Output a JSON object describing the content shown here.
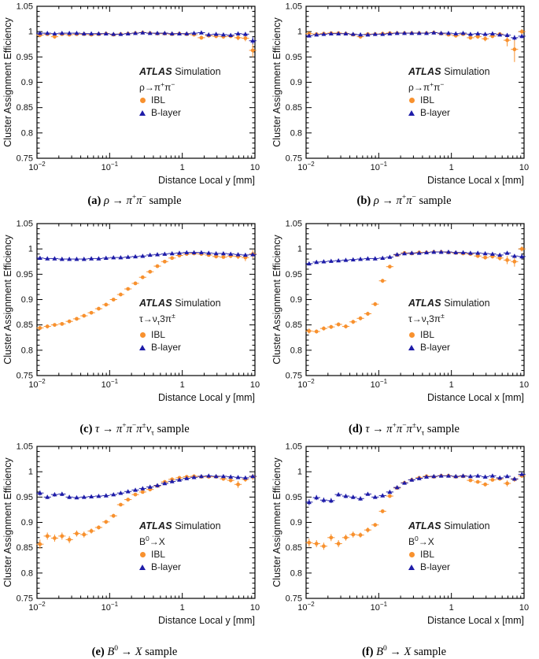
{
  "colors": {
    "ibl": "#F8912E",
    "blayer": "#1E1CA8",
    "axis": "#000000",
    "text": "#1a1a1a"
  },
  "legend": {
    "atlas": "ATLAS",
    "simulation": " Simulation",
    "ibl_label": "IBL",
    "blayer_label": "B-layer"
  },
  "axes": {
    "ylabel": "Cluster Assignment Efficiency",
    "ylim": [
      0.75,
      1.05
    ],
    "xlim": [
      0.01,
      10
    ],
    "xscale": "log",
    "y_ticks": [
      {
        "v": 0.75,
        "label": "0.75"
      },
      {
        "v": 0.8,
        "label": "0.8"
      },
      {
        "v": 0.85,
        "label": "0.85"
      },
      {
        "v": 0.9,
        "label": "0.9"
      },
      {
        "v": 0.95,
        "label": "0.95"
      },
      {
        "v": 1.0,
        "label": "1"
      },
      {
        "v": 1.05,
        "label": "1.05"
      }
    ],
    "y_minor_step": 0.01,
    "x_ticks": [
      {
        "v": 0.01,
        "label": "10",
        "exp": "−2"
      },
      {
        "v": 0.1,
        "label": "10",
        "exp": "−1"
      },
      {
        "v": 1,
        "label": "1"
      },
      {
        "v": 10,
        "label": "10"
      }
    ]
  },
  "x_values": [
    0.011,
    0.0139,
    0.0175,
    0.0221,
    0.0279,
    0.0352,
    0.0444,
    0.056,
    0.0707,
    0.0892,
    0.113,
    0.142,
    0.179,
    0.226,
    0.285,
    0.36,
    0.454,
    0.573,
    0.723,
    0.912,
    1.15,
    1.45,
    1.83,
    2.31,
    2.92,
    3.68,
    4.64,
    5.86,
    7.39,
    9.33
  ],
  "chart_data": [
    {
      "type": "scatter",
      "panel": "a",
      "xlabel": "Distance Local y [mm]",
      "ylabel": "Cluster Assignment Efficiency",
      "process_html": "ρ→π<sup>+</sup>π<sup>−</sup>",
      "caption_html": "<b>(a)</b> <i>ρ</i> → <i>π</i><sup>+</sup><i>π</i><sup>−</sup> sample",
      "series": [
        {
          "name": "IBL",
          "marker": "circle",
          "y": [
            0.993,
            0.995,
            0.99,
            0.995,
            0.994,
            0.995,
            0.995,
            0.994,
            0.995,
            0.996,
            0.994,
            0.995,
            0.996,
            0.997,
            0.998,
            0.997,
            0.996,
            0.996,
            0.995,
            0.996,
            0.995,
            0.994,
            0.988,
            0.992,
            0.991,
            0.99,
            0.991,
            0.988,
            0.987,
            0.963
          ],
          "err": [
            0.004,
            0.003,
            0.004,
            0.003,
            0.003,
            0.003,
            0.003,
            0.003,
            0.002,
            0.002,
            0.002,
            0.002,
            0.002,
            0.002,
            0.002,
            0.002,
            0.002,
            0.002,
            0.002,
            0.002,
            0.002,
            0.003,
            0.004,
            0.003,
            0.004,
            0.004,
            0.004,
            0.005,
            0.006,
            0.013
          ]
        },
        {
          "name": "B-layer",
          "marker": "triangle",
          "y": [
            0.997,
            0.997,
            0.996,
            0.997,
            0.997,
            0.997,
            0.996,
            0.996,
            0.996,
            0.996,
            0.995,
            0.995,
            0.996,
            0.997,
            0.998,
            0.997,
            0.997,
            0.997,
            0.996,
            0.996,
            0.996,
            0.997,
            0.998,
            0.994,
            0.995,
            0.994,
            0.993,
            0.996,
            0.995,
            0.982
          ],
          "err": [
            0.002,
            0.002,
            0.002,
            0.002,
            0.002,
            0.002,
            0.002,
            0.002,
            0.001,
            0.001,
            0.001,
            0.001,
            0.001,
            0.001,
            0.001,
            0.001,
            0.001,
            0.001,
            0.001,
            0.001,
            0.002,
            0.002,
            0.002,
            0.002,
            0.002,
            0.003,
            0.003,
            0.003,
            0.004,
            0.007
          ]
        }
      ]
    },
    {
      "type": "scatter",
      "panel": "b",
      "xlabel": "Distance Local x [mm]",
      "ylabel": "Cluster Assignment Efficiency",
      "process_html": "ρ→π<sup>+</sup>π<sup>−</sup>",
      "caption_html": "<b>(b)</b> <i>ρ</i> → <i>π</i><sup>+</sup><i>π</i><sup>−</sup> sample",
      "series": [
        {
          "name": "IBL",
          "marker": "circle",
          "y": [
            0.996,
            0.995,
            0.996,
            0.997,
            0.997,
            0.996,
            0.994,
            0.99,
            0.995,
            0.995,
            0.996,
            0.997,
            0.997,
            0.997,
            0.997,
            0.997,
            0.997,
            0.998,
            0.996,
            0.994,
            0.992,
            0.995,
            0.988,
            0.99,
            0.986,
            0.991,
            0.995,
            0.983,
            0.965,
            1.0
          ],
          "err": [
            0.003,
            0.003,
            0.003,
            0.002,
            0.002,
            0.002,
            0.003,
            0.004,
            0.002,
            0.002,
            0.002,
            0.002,
            0.002,
            0.002,
            0.002,
            0.002,
            0.002,
            0.002,
            0.002,
            0.002,
            0.003,
            0.003,
            0.004,
            0.004,
            0.005,
            0.004,
            0.004,
            0.012,
            0.025,
            0.005
          ]
        },
        {
          "name": "B-layer",
          "marker": "triangle",
          "y": [
            0.992,
            0.994,
            0.995,
            0.996,
            0.996,
            0.996,
            0.995,
            0.994,
            0.994,
            0.995,
            0.995,
            0.996,
            0.997,
            0.997,
            0.997,
            0.997,
            0.997,
            0.998,
            0.997,
            0.997,
            0.996,
            0.997,
            0.995,
            0.996,
            0.995,
            0.996,
            0.994,
            0.993,
            0.988,
            0.991
          ],
          "err": [
            0.002,
            0.002,
            0.002,
            0.001,
            0.001,
            0.001,
            0.001,
            0.001,
            0.001,
            0.001,
            0.001,
            0.001,
            0.001,
            0.001,
            0.001,
            0.001,
            0.001,
            0.001,
            0.001,
            0.001,
            0.001,
            0.002,
            0.002,
            0.002,
            0.002,
            0.002,
            0.003,
            0.004,
            0.005,
            0.004
          ]
        }
      ]
    },
    {
      "type": "scatter",
      "panel": "c",
      "xlabel": "Distance Local y [mm]",
      "ylabel": "Cluster Assignment Efficiency",
      "process_html": "τ→ν<sub>τ</sub>3π<sup>±</sup>",
      "caption_html": "<b>(c)</b> <i>τ</i> → <i>π</i><sup>+</sup><i>π</i><sup>−</sup><i>π</i><sup>±</sup><i>ν</i><sub>τ</sub> sample",
      "series": [
        {
          "name": "IBL",
          "marker": "circle",
          "y": [
            0.844,
            0.847,
            0.85,
            0.852,
            0.857,
            0.862,
            0.868,
            0.874,
            0.882,
            0.89,
            0.9,
            0.91,
            0.921,
            0.932,
            0.944,
            0.955,
            0.966,
            0.975,
            0.982,
            0.987,
            0.99,
            0.991,
            0.99,
            0.988,
            0.985,
            0.984,
            0.986,
            0.985,
            0.983,
            0.99
          ],
          "err": [
            0.004,
            0.004,
            0.003,
            0.003,
            0.003,
            0.003,
            0.003,
            0.003,
            0.003,
            0.003,
            0.002,
            0.002,
            0.002,
            0.002,
            0.002,
            0.002,
            0.002,
            0.002,
            0.002,
            0.002,
            0.002,
            0.002,
            0.002,
            0.002,
            0.003,
            0.003,
            0.004,
            0.005,
            0.007,
            0.008
          ]
        },
        {
          "name": "B-layer",
          "marker": "triangle",
          "y": [
            0.982,
            0.981,
            0.981,
            0.98,
            0.98,
            0.98,
            0.98,
            0.981,
            0.981,
            0.982,
            0.983,
            0.983,
            0.984,
            0.985,
            0.986,
            0.988,
            0.989,
            0.99,
            0.991,
            0.992,
            0.993,
            0.993,
            0.993,
            0.992,
            0.991,
            0.991,
            0.99,
            0.989,
            0.988,
            0.989
          ],
          "err": [
            0.002,
            0.002,
            0.002,
            0.002,
            0.001,
            0.001,
            0.001,
            0.001,
            0.001,
            0.001,
            0.001,
            0.001,
            0.001,
            0.001,
            0.001,
            0.001,
            0.001,
            0.001,
            0.001,
            0.001,
            0.001,
            0.001,
            0.001,
            0.001,
            0.002,
            0.002,
            0.002,
            0.002,
            0.003,
            0.003
          ]
        }
      ]
    },
    {
      "type": "scatter",
      "panel": "d",
      "xlabel": "Distance Local x [mm]",
      "ylabel": "Cluster Assignment Efficiency",
      "process_html": "τ→ν<sub>τ</sub>3π<sup>±</sup>",
      "caption_html": "<b>(d)</b> <i>τ</i> → <i>π</i><sup>+</sup><i>π</i><sup>−</sup><i>π</i><sup>±</sup><i>ν</i><sub>τ</sub> sample",
      "series": [
        {
          "name": "IBL",
          "marker": "circle",
          "y": [
            0.838,
            0.837,
            0.843,
            0.846,
            0.851,
            0.847,
            0.856,
            0.863,
            0.872,
            0.891,
            0.937,
            0.965,
            0.988,
            0.992,
            0.991,
            0.993,
            0.993,
            0.994,
            0.994,
            0.993,
            0.992,
            0.991,
            0.99,
            0.986,
            0.983,
            0.985,
            0.982,
            0.978,
            0.975,
            1.0
          ],
          "err": [
            0.005,
            0.004,
            0.004,
            0.004,
            0.004,
            0.004,
            0.004,
            0.004,
            0.004,
            0.004,
            0.004,
            0.003,
            0.002,
            0.002,
            0.002,
            0.002,
            0.002,
            0.002,
            0.002,
            0.002,
            0.002,
            0.002,
            0.003,
            0.003,
            0.004,
            0.004,
            0.005,
            0.008,
            0.01,
            0.005
          ]
        },
        {
          "name": "B-layer",
          "marker": "triangle",
          "y": [
            0.971,
            0.974,
            0.975,
            0.976,
            0.977,
            0.978,
            0.979,
            0.98,
            0.981,
            0.981,
            0.982,
            0.984,
            0.989,
            0.991,
            0.992,
            0.992,
            0.993,
            0.994,
            0.994,
            0.994,
            0.993,
            0.993,
            0.992,
            0.992,
            0.991,
            0.99,
            0.988,
            0.992,
            0.986,
            0.985
          ],
          "err": [
            0.002,
            0.002,
            0.002,
            0.002,
            0.002,
            0.001,
            0.001,
            0.001,
            0.001,
            0.001,
            0.001,
            0.001,
            0.001,
            0.001,
            0.001,
            0.001,
            0.001,
            0.001,
            0.001,
            0.001,
            0.001,
            0.001,
            0.001,
            0.002,
            0.002,
            0.002,
            0.002,
            0.002,
            0.003,
            0.004
          ]
        }
      ]
    },
    {
      "type": "scatter",
      "panel": "e",
      "xlabel": "Distance Local y [mm]",
      "ylabel": "Cluster Assignment Efficiency",
      "process_html": "B<sup>0</sup>→X",
      "caption_html": "<b>(e)</b> <i>B</i><sup>0</sup> → <i>X</i> sample",
      "series": [
        {
          "name": "IBL",
          "marker": "circle",
          "y": [
            0.857,
            0.873,
            0.869,
            0.873,
            0.866,
            0.878,
            0.876,
            0.883,
            0.89,
            0.901,
            0.913,
            0.935,
            0.945,
            0.955,
            0.96,
            0.965,
            0.972,
            0.98,
            0.985,
            0.988,
            0.99,
            0.991,
            0.99,
            0.99,
            0.99,
            0.986,
            0.983,
            0.975,
            0.985,
            0.99
          ],
          "err": [
            0.009,
            0.007,
            0.007,
            0.007,
            0.007,
            0.006,
            0.006,
            0.005,
            0.004,
            0.004,
            0.004,
            0.003,
            0.003,
            0.003,
            0.003,
            0.003,
            0.002,
            0.002,
            0.002,
            0.002,
            0.002,
            0.002,
            0.002,
            0.002,
            0.002,
            0.003,
            0.004,
            0.007,
            0.005,
            0.006
          ]
        },
        {
          "name": "B-layer",
          "marker": "triangle",
          "y": [
            0.958,
            0.95,
            0.955,
            0.956,
            0.95,
            0.949,
            0.95,
            0.951,
            0.952,
            0.953,
            0.955,
            0.958,
            0.961,
            0.964,
            0.967,
            0.97,
            0.973,
            0.977,
            0.981,
            0.984,
            0.987,
            0.989,
            0.991,
            0.992,
            0.991,
            0.991,
            0.99,
            0.989,
            0.988,
            0.991
          ],
          "err": [
            0.005,
            0.004,
            0.004,
            0.004,
            0.004,
            0.003,
            0.003,
            0.003,
            0.003,
            0.002,
            0.002,
            0.002,
            0.002,
            0.002,
            0.002,
            0.002,
            0.002,
            0.002,
            0.001,
            0.001,
            0.001,
            0.001,
            0.001,
            0.001,
            0.001,
            0.001,
            0.002,
            0.002,
            0.002,
            0.002
          ]
        }
      ]
    },
    {
      "type": "scatter",
      "panel": "f",
      "xlabel": "Distance Local x [mm]",
      "ylabel": "Cluster Assignment Efficiency",
      "process_html": "B<sup>0</sup>→X",
      "caption_html": "<b>(f)</b> <i>B</i><sup>0</sup> → <i>X</i> sample",
      "series": [
        {
          "name": "IBL",
          "marker": "circle",
          "y": [
            0.86,
            0.858,
            0.853,
            0.87,
            0.858,
            0.87,
            0.876,
            0.875,
            0.885,
            0.895,
            0.922,
            0.952,
            0.968,
            0.978,
            0.984,
            0.988,
            0.991,
            0.99,
            0.992,
            0.992,
            0.99,
            0.991,
            0.983,
            0.98,
            0.975,
            0.984,
            0.986,
            0.977,
            0.985,
            0.992
          ],
          "err": [
            0.008,
            0.007,
            0.007,
            0.007,
            0.007,
            0.006,
            0.006,
            0.005,
            0.005,
            0.004,
            0.004,
            0.003,
            0.003,
            0.002,
            0.002,
            0.002,
            0.002,
            0.002,
            0.002,
            0.002,
            0.002,
            0.002,
            0.003,
            0.003,
            0.004,
            0.003,
            0.003,
            0.006,
            0.005,
            0.004
          ]
        },
        {
          "name": "B-layer",
          "marker": "triangle",
          "y": [
            0.94,
            0.949,
            0.944,
            0.943,
            0.955,
            0.952,
            0.95,
            0.947,
            0.956,
            0.95,
            0.953,
            0.96,
            0.969,
            0.978,
            0.984,
            0.987,
            0.99,
            0.991,
            0.992,
            0.992,
            0.991,
            0.992,
            0.991,
            0.992,
            0.99,
            0.992,
            0.988,
            0.991,
            0.986,
            0.995
          ],
          "err": [
            0.006,
            0.005,
            0.005,
            0.005,
            0.004,
            0.004,
            0.004,
            0.004,
            0.003,
            0.003,
            0.003,
            0.003,
            0.002,
            0.002,
            0.002,
            0.002,
            0.002,
            0.001,
            0.001,
            0.001,
            0.001,
            0.001,
            0.001,
            0.001,
            0.001,
            0.002,
            0.002,
            0.002,
            0.002,
            0.002
          ]
        }
      ]
    }
  ]
}
